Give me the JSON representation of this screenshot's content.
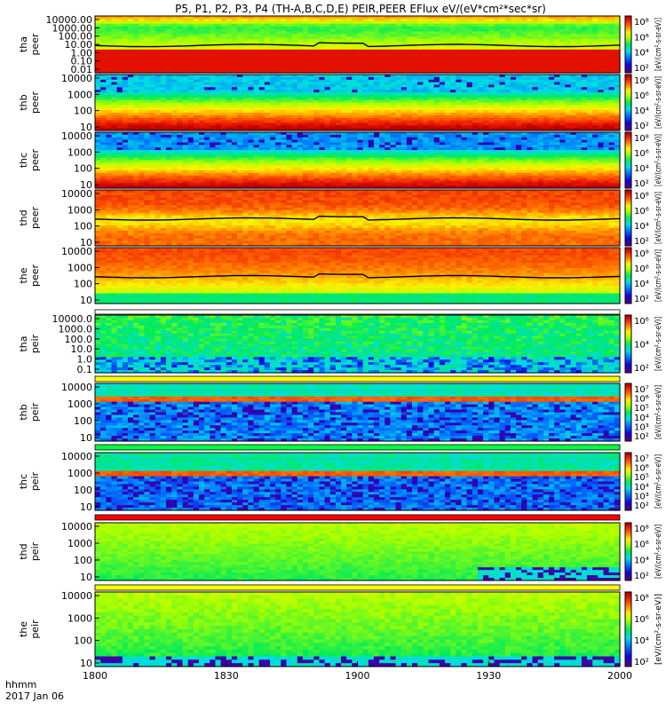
{
  "chart_data": {
    "type": "heatmap",
    "title": "P5, P1, P2, P3, P4 (TH-A,B,C,D,E) PEIR,PEER EFlux eV/(eV*cm²*sec*sr)",
    "x_axis": {
      "range": [
        1800,
        2000
      ],
      "ticks": [
        "1800",
        "1830",
        "1900",
        "1930",
        "2000"
      ],
      "label": "hhmm",
      "date": "2017 Jan 06"
    },
    "colorbar_label": "[eV/(cm²-s-sr-eV)]",
    "panels": [
      {
        "id": "tha-peer",
        "probe": "tha",
        "species": "peer",
        "yticks": [
          "10000.00",
          "1000.00",
          "100.00",
          "10.00",
          "1.00",
          "0.10",
          "0.01"
        ],
        "cbar_ticks": [
          "10⁸",
          "10⁶",
          "10⁴",
          "10²"
        ],
        "pattern": "ion-hot",
        "curve": true
      },
      {
        "id": "thb-peer",
        "probe": "thb",
        "species": "peer",
        "yticks": [
          "10000",
          "1000",
          "100",
          "10"
        ],
        "cbar_ticks": [
          "10⁸",
          "10⁶",
          "10⁴",
          "10²"
        ],
        "pattern": "electron-b"
      },
      {
        "id": "thc-peer",
        "probe": "thc",
        "species": "peer",
        "yticks": [
          "10000",
          "1000",
          "100",
          "10"
        ],
        "cbar_ticks": [
          "10⁸",
          "10⁶",
          "10⁴",
          "10²"
        ],
        "pattern": "electron-c"
      },
      {
        "id": "thd-peer",
        "probe": "thd",
        "species": "peer",
        "yticks": [
          "10000",
          "1000",
          "100",
          "10"
        ],
        "cbar_ticks": [
          "10⁸",
          "10⁶",
          "10⁴",
          "10²"
        ],
        "pattern": "electron-d",
        "curve": true
      },
      {
        "id": "the-peer",
        "probe": "the",
        "species": "peer",
        "yticks": [
          "10000",
          "1000",
          "100",
          "10"
        ],
        "cbar_ticks": [
          "10⁸",
          "10⁶",
          "10⁴",
          "10²"
        ],
        "pattern": "electron-e",
        "curve": true
      },
      {
        "id": "tha-peir",
        "probe": "tha",
        "species": "peir",
        "yticks": [
          "10000.0",
          "1000.0",
          "100.0",
          "10.0",
          "1.0",
          "0.1"
        ],
        "cbar_ticks": [
          "10⁶",
          "10⁴",
          "10²"
        ],
        "pattern": "ion-a",
        "strip": "white"
      },
      {
        "id": "thb-peir",
        "probe": "thb",
        "species": "peir",
        "yticks": [
          "10000",
          "1000",
          "100",
          "10"
        ],
        "cbar_ticks": [
          "10⁷",
          "10⁶",
          "10⁵",
          "10⁴",
          "10³",
          "10²"
        ],
        "pattern": "ion-b",
        "strip": "yellow"
      },
      {
        "id": "thc-peir",
        "probe": "thc",
        "species": "peir",
        "yticks": [
          "10000",
          "1000",
          "100",
          "10"
        ],
        "cbar_ticks": [
          "10⁷",
          "10⁶",
          "10⁵",
          "10⁴",
          "10³",
          "10²"
        ],
        "pattern": "ion-c",
        "strip": "green"
      },
      {
        "id": "thd-peir",
        "probe": "thd",
        "species": "peir",
        "yticks": [
          "10000",
          "1000",
          "100",
          "10"
        ],
        "cbar_ticks": [
          "10⁸",
          "10⁶",
          "10⁴",
          "10²"
        ],
        "pattern": "ion-d",
        "strip": "red"
      },
      {
        "id": "the-peir",
        "probe": "the",
        "species": "peir",
        "yticks": [
          "10000",
          "1000",
          "100",
          "10"
        ],
        "cbar_ticks": [
          "10⁸",
          "10⁶",
          "10⁴",
          "10²"
        ],
        "pattern": "ion-e",
        "strip": "yellow"
      }
    ]
  }
}
